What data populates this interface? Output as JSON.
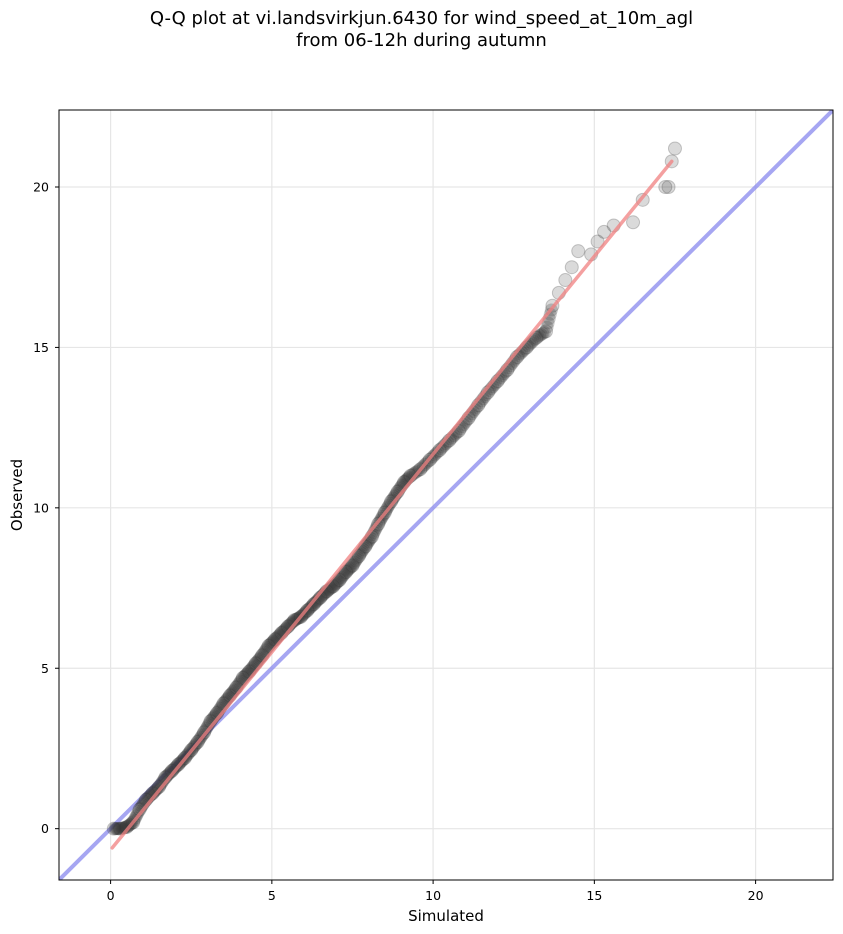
{
  "chart_data": {
    "type": "scatter",
    "title_lines": [
      "Q-Q plot at vi.landsvirkjun.6430 for wind_speed_at_10m_agl",
      "from 06-12h during autumn"
    ],
    "xlabel": "Simulated",
    "ylabel": "Observed",
    "xlim": [
      -1.6,
      22.4
    ],
    "ylim": [
      -1.6,
      22.4
    ],
    "xticks": [
      0,
      5,
      10,
      15,
      20
    ],
    "yticks": [
      0,
      5,
      10,
      15,
      20
    ],
    "grid": true,
    "colors": {
      "points": "#333333",
      "fit_line": "#f08080",
      "identity_line": "#8888ee"
    },
    "fit_line": {
      "from": [
        0.05,
        -0.6
      ],
      "to": [
        17.4,
        20.8
      ]
    },
    "identity_line": {
      "slope": 1,
      "intercept": 0
    },
    "quantiles": [
      [
        0.1,
        0.0
      ],
      [
        0.3,
        0.0
      ],
      [
        0.5,
        0.05
      ],
      [
        0.7,
        0.2
      ],
      [
        0.9,
        0.6
      ],
      [
        1.1,
        0.9
      ],
      [
        1.3,
        1.1
      ],
      [
        1.5,
        1.3
      ],
      [
        1.7,
        1.6
      ],
      [
        1.9,
        1.8
      ],
      [
        2.1,
        2.0
      ],
      [
        2.3,
        2.2
      ],
      [
        2.5,
        2.45
      ],
      [
        2.7,
        2.7
      ],
      [
        2.9,
        3.0
      ],
      [
        3.1,
        3.35
      ],
      [
        3.3,
        3.6
      ],
      [
        3.5,
        3.9
      ],
      [
        3.7,
        4.15
      ],
      [
        3.9,
        4.4
      ],
      [
        4.1,
        4.7
      ],
      [
        4.3,
        4.9
      ],
      [
        4.5,
        5.15
      ],
      [
        4.7,
        5.4
      ],
      [
        4.9,
        5.7
      ],
      [
        5.1,
        5.9
      ],
      [
        5.3,
        6.1
      ],
      [
        5.5,
        6.3
      ],
      [
        5.7,
        6.5
      ],
      [
        5.9,
        6.6
      ],
      [
        6.1,
        6.8
      ],
      [
        6.3,
        7.0
      ],
      [
        6.5,
        7.2
      ],
      [
        6.7,
        7.4
      ],
      [
        6.9,
        7.55
      ],
      [
        7.1,
        7.75
      ],
      [
        7.3,
        8.0
      ],
      [
        7.5,
        8.2
      ],
      [
        7.7,
        8.5
      ],
      [
        7.9,
        8.8
      ],
      [
        8.1,
        9.1
      ],
      [
        8.3,
        9.5
      ],
      [
        8.5,
        9.85
      ],
      [
        8.7,
        10.2
      ],
      [
        8.9,
        10.5
      ],
      [
        9.1,
        10.8
      ],
      [
        9.3,
        11.0
      ],
      [
        9.6,
        11.2
      ],
      [
        9.9,
        11.5
      ],
      [
        10.2,
        11.8
      ],
      [
        10.5,
        12.1
      ],
      [
        10.8,
        12.4
      ],
      [
        11.1,
        12.8
      ],
      [
        11.4,
        13.2
      ],
      [
        11.7,
        13.6
      ],
      [
        12.0,
        13.95
      ],
      [
        12.3,
        14.3
      ],
      [
        12.6,
        14.7
      ],
      [
        12.9,
        15.0
      ],
      [
        13.2,
        15.3
      ],
      [
        13.5,
        15.5
      ],
      [
        13.7,
        16.3
      ],
      [
        13.9,
        16.7
      ],
      [
        14.1,
        17.1
      ],
      [
        14.3,
        17.5
      ],
      [
        14.5,
        18.0
      ],
      [
        14.9,
        17.9
      ],
      [
        15.1,
        18.3
      ],
      [
        15.3,
        18.6
      ],
      [
        15.6,
        18.8
      ],
      [
        16.2,
        18.9
      ],
      [
        16.5,
        19.6
      ],
      [
        17.2,
        20.0
      ],
      [
        17.3,
        20.0
      ],
      [
        17.4,
        20.8
      ],
      [
        17.5,
        21.2
      ]
    ]
  }
}
